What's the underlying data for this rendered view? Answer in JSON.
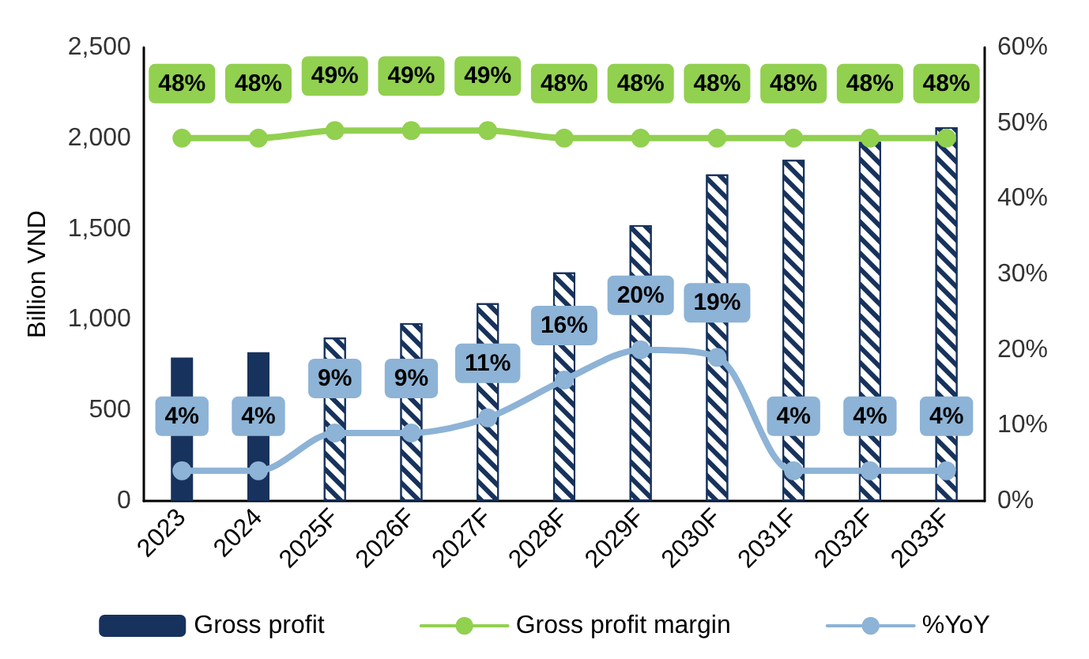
{
  "chart_data": {
    "type": "bar",
    "ylabel": "Billion VND",
    "categories": [
      "2023",
      "2024",
      "2025F",
      "2026F",
      "2027F",
      "2028F",
      "2029F",
      "2030F",
      "2031F",
      "2032F",
      "2033F"
    ],
    "series": [
      {
        "name": "Gross profit",
        "color": "#17325c",
        "colors": [
          "#17325c",
          "#17325c",
          "#ffffff",
          "#ffffff",
          "#ffffff",
          "#ffffff",
          "#ffffff",
          "#ffffff",
          "#ffffff",
          "#ffffff",
          "#ffffff"
        ],
        "values": [
          790,
          820,
          900,
          980,
          1090,
          1260,
          1520,
          1800,
          1880,
          1980,
          2060
        ]
      },
      {
        "name": "Gross profit margin",
        "type": "line",
        "axis": "y2",
        "color": "#92d050",
        "values": [
          48,
          48,
          49,
          49,
          49,
          48,
          48,
          48,
          48,
          48,
          48
        ],
        "value_labels": [
          "48%",
          "48%",
          "49%",
          "49%",
          "49%",
          "48%",
          "48%",
          "48%",
          "48%",
          "48%",
          "48%"
        ]
      },
      {
        "name": "%YoY",
        "type": "line",
        "axis": "y2",
        "color": "#8db3d6",
        "values": [
          4,
          4,
          9,
          9,
          11,
          16,
          20,
          19,
          4,
          4,
          4
        ],
        "value_labels": [
          "4%",
          "4%",
          "9%",
          "9%",
          "11%",
          "16%",
          "20%",
          "19%",
          "4%",
          "4%",
          "4%"
        ]
      }
    ],
    "ylim": [
      0,
      2500
    ],
    "yticks": [
      0,
      500,
      {
        "value": 1000,
        "label": "1,000"
      },
      {
        "value": 1500,
        "label": "1,500"
      },
      {
        "value": 2000,
        "label": "2,000"
      },
      {
        "value": 2500,
        "label": "2,500"
      }
    ],
    "y2lim": [
      0,
      60
    ],
    "y2ticks": [
      {
        "value": 0,
        "label": "0%"
      },
      {
        "value": 10,
        "label": "10%"
      },
      {
        "value": 20,
        "label": "20%"
      },
      {
        "value": 30,
        "label": "30%"
      },
      {
        "value": 40,
        "label": "40%"
      },
      {
        "value": 50,
        "label": "50%"
      },
      {
        "value": 60,
        "label": "60%"
      }
    ],
    "grid": false,
    "legend": "bottom",
    "marker": "circle",
    "line_style": "solid"
  }
}
